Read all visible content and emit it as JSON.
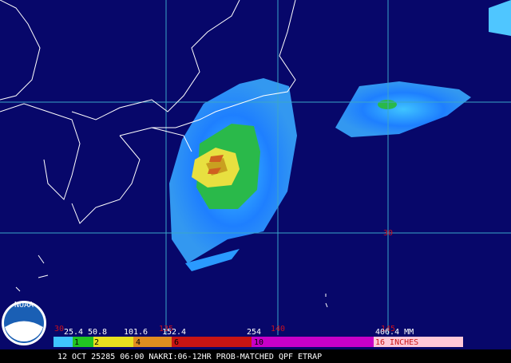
{
  "map": {
    "grid_labels": {
      "lon": [
        "135",
        "140",
        "145"
      ],
      "lat": [
        "30",
        "30"
      ]
    }
  },
  "legend": {
    "mm_labels": [
      "25.4",
      "50.8",
      "101.6",
      "152.4",
      "254",
      "406.4 MM"
    ],
    "inch_labels": [
      "1",
      "2",
      "4",
      "6",
      "10",
      "16 INCHES"
    ]
  },
  "footer": "12 OCT 25285 06:00 NAKRI:06-12HR PROB-MATCHED QPF ETRAP",
  "logo": "NOAA"
}
